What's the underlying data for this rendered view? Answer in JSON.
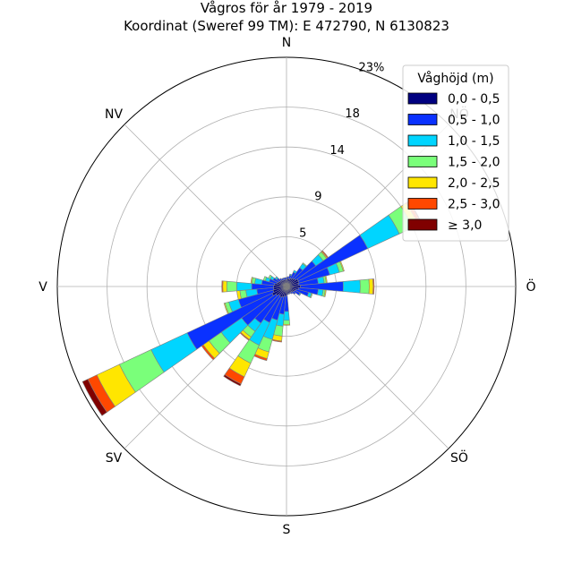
{
  "title": {
    "line1": "Vågros för år 1979 - 2019",
    "line2": "Koordinat (Sweref 99 TM): E 472790, N 6130823"
  },
  "compass_labels": {
    "n": "N",
    "ne": "NÖ",
    "e": "Ö",
    "se": "SÖ",
    "s": "S",
    "sw": "SV",
    "w": "V",
    "nw": "NV"
  },
  "ring_labels": {
    "r1": "5",
    "r2": "9",
    "r3": "14",
    "r4": "18",
    "r5": "23%"
  },
  "legend": {
    "title": "Våghöjd (m)",
    "items": [
      "0,0 - 0,5",
      "0,5 - 1,0",
      "1,0 - 1,5",
      "1,5 - 2,0",
      "2,0 - 2,5",
      "2,5 - 3,0",
      "≥ 3,0"
    ],
    "colors": [
      "#000080",
      "#0a31ff",
      "#00d5ff",
      "#7aff7a",
      "#ffe600",
      "#ff4800",
      "#800000"
    ],
    "placement": "top-right"
  },
  "chart_data": {
    "type": "windrose",
    "units": "%",
    "rmax": 23,
    "ring_ticks": [
      5,
      9,
      14,
      18,
      23
    ],
    "sector_width_deg": 10,
    "bins": [
      "0,0 - 0,5",
      "0,5 - 1,0",
      "1,0 - 1,5",
      "1,5 - 2,0",
      "2,0 - 2,5",
      "2,5 - 3,0",
      "≥ 3,0"
    ],
    "sectors": [
      {
        "dir_deg": 0,
        "cum": [
          0.7,
          0.9
        ]
      },
      {
        "dir_deg": 10,
        "cum": [
          0.8,
          1.0
        ]
      },
      {
        "dir_deg": 20,
        "cum": [
          0.8,
          1.2,
          1.3
        ]
      },
      {
        "dir_deg": 30,
        "cum": [
          0.9,
          1.6,
          1.8
        ]
      },
      {
        "dir_deg": 40,
        "cum": [
          1.0,
          2.3,
          2.8,
          2.9
        ]
      },
      {
        "dir_deg": 50,
        "cum": [
          1.1,
          3.6,
          4.5,
          4.9,
          5.0,
          5.1
        ]
      },
      {
        "dir_deg": 60,
        "cum": [
          1.3,
          9.0,
          12.5,
          14.0,
          14.6,
          14.9,
          15.0
        ]
      },
      {
        "dir_deg": 70,
        "cum": [
          1.3,
          4.5,
          5.5,
          5.9,
          6.0
        ]
      },
      {
        "dir_deg": 80,
        "cum": [
          1.2,
          3.2,
          3.8,
          4.0,
          4.1
        ]
      },
      {
        "dir_deg": 90,
        "cum": [
          1.4,
          5.7,
          7.4,
          8.3,
          8.7,
          8.8
        ]
      },
      {
        "dir_deg": 100,
        "cum": [
          1.2,
          3.2,
          3.7,
          3.9,
          4.0
        ]
      },
      {
        "dir_deg": 110,
        "cum": [
          1.0,
          2.3,
          2.6,
          2.7
        ]
      },
      {
        "dir_deg": 120,
        "cum": [
          0.9,
          1.5,
          1.6
        ]
      },
      {
        "dir_deg": 130,
        "cum": [
          0.8,
          1.1
        ]
      },
      {
        "dir_deg": 140,
        "cum": [
          0.7,
          0.9
        ]
      },
      {
        "dir_deg": 150,
        "cum": [
          0.7,
          0.8
        ]
      },
      {
        "dir_deg": 160,
        "cum": [
          0.7,
          0.8
        ]
      },
      {
        "dir_deg": 170,
        "cum": [
          0.7,
          0.8
        ]
      },
      {
        "dir_deg": 180,
        "cum": [
          0.9,
          2.5,
          3.4,
          3.8,
          3.9
        ]
      },
      {
        "dir_deg": 190,
        "cum": [
          1.0,
          2.8,
          4.0,
          5.0,
          5.5,
          5.6
        ]
      },
      {
        "dir_deg": 200,
        "cum": [
          1.1,
          3.5,
          5.5,
          6.8,
          7.5,
          7.7
        ]
      },
      {
        "dir_deg": 210,
        "cum": [
          1.2,
          4.0,
          6.5,
          8.5,
          10.0,
          10.8,
          11.0
        ]
      },
      {
        "dir_deg": 220,
        "cum": [
          1.1,
          4.5,
          5.5,
          6.2,
          6.5,
          6.6
        ]
      },
      {
        "dir_deg": 230,
        "cum": [
          1.3,
          5.5,
          8.0,
          9.5,
          10.2,
          10.4
        ]
      },
      {
        "dir_deg": 240,
        "cum": [
          1.6,
          11.0,
          15.0,
          18.5,
          21.0,
          22.0,
          22.6
        ]
      },
      {
        "dir_deg": 250,
        "cum": [
          1.4,
          5.0,
          6.0,
          6.4,
          6.5
        ]
      },
      {
        "dir_deg": 260,
        "cum": [
          1.3,
          3.0,
          4.1,
          4.7,
          5.0
        ]
      },
      {
        "dir_deg": 270,
        "cum": [
          1.3,
          3.5,
          5.0,
          6.0,
          6.4,
          6.5
        ]
      },
      {
        "dir_deg": 280,
        "cum": [
          1.2,
          2.5,
          3.2,
          3.5,
          3.6
        ]
      },
      {
        "dir_deg": 290,
        "cum": [
          1.0,
          1.8,
          2.2,
          2.4
        ]
      },
      {
        "dir_deg": 300,
        "cum": [
          0.9,
          1.5,
          1.8,
          2.0
        ]
      },
      {
        "dir_deg": 310,
        "cum": [
          0.8,
          1.2,
          1.4
        ]
      },
      {
        "dir_deg": 320,
        "cum": [
          0.8,
          1.0
        ]
      },
      {
        "dir_deg": 330,
        "cum": [
          0.7,
          0.9
        ]
      },
      {
        "dir_deg": 340,
        "cum": [
          0.7,
          0.9
        ]
      },
      {
        "dir_deg": 350,
        "cum": [
          0.7,
          0.9
        ]
      }
    ]
  }
}
